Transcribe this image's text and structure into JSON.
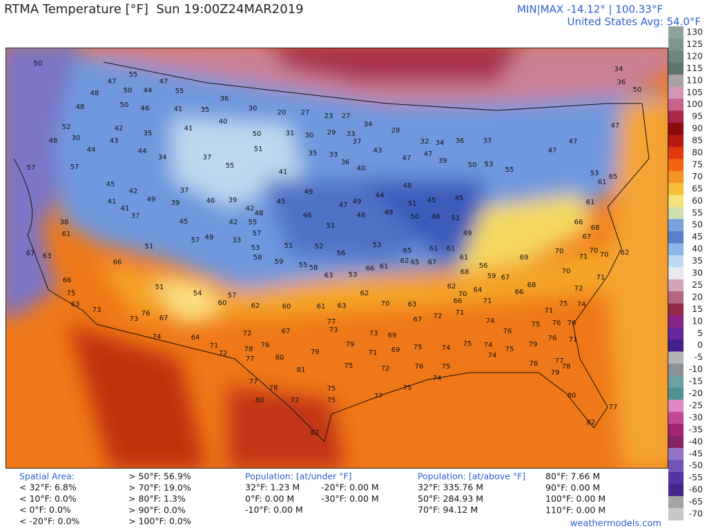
{
  "header": {
    "title": "RTMA Temperature [°F]  Sun 19:00Z24MAR2019",
    "minmax": "MIN|MAX -14.12° | 100.33°F",
    "average": "United States Avg: 54.0°F"
  },
  "map": {
    "station_values": [
      50,
      55,
      47,
      50,
      44,
      47,
      55,
      48,
      50,
      48,
      46,
      41,
      35,
      36,
      30,
      20,
      27,
      23,
      27,
      34,
      52,
      42,
      35,
      41,
      40,
      50,
      31,
      30,
      29,
      33,
      37,
      43,
      28,
      32,
      34,
      36,
      37,
      48,
      30,
      43,
      44,
      34,
      37,
      55,
      51,
      41,
      35,
      33,
      36,
      40,
      47,
      47,
      39,
      50,
      53,
      55,
      47,
      47,
      47,
      50,
      34,
      36,
      53,
      61,
      65,
      61,
      66,
      68,
      67,
      70,
      70,
      70,
      62,
      71,
      70,
      71,
      72,
      75,
      74,
      71,
      75,
      76,
      76,
      76,
      71,
      79,
      77,
      78,
      78,
      79,
      80,
      77,
      82,
      44,
      57,
      57,
      45,
      42,
      49,
      41,
      41,
      37,
      39,
      37,
      46,
      39,
      42,
      48,
      45,
      49,
      47,
      49,
      44,
      48,
      51,
      45,
      45,
      38,
      61,
      45,
      57,
      49,
      33,
      42,
      55,
      57,
      46,
      51,
      48,
      49,
      50,
      48,
      51,
      49,
      53,
      51,
      52,
      56,
      53,
      65,
      61,
      63,
      67,
      66,
      51,
      58,
      59,
      55,
      58,
      63,
      53,
      66,
      61,
      62,
      65,
      67,
      61,
      61,
      56,
      68,
      59,
      69,
      67,
      68,
      66,
      66,
      51,
      54,
      60,
      57,
      62,
      60,
      61,
      63,
      62,
      70,
      63,
      62,
      66,
      71,
      70,
      64,
      75,
      63,
      73,
      73,
      76,
      67,
      74,
      64,
      71,
      72,
      76,
      67,
      77,
      73,
      73,
      69,
      67,
      72,
      71,
      74,
      76,
      75,
      74,
      75,
      74,
      75,
      69,
      71,
      79,
      79,
      80,
      77,
      78,
      72,
      81,
      75,
      72,
      76,
      75,
      74,
      77,
      78,
      72,
      75,
      75,
      77,
      75,
      74,
      80,
      82
    ]
  },
  "colorbar": {
    "ticks": [
      130,
      125,
      120,
      115,
      110,
      105,
      100,
      95,
      90,
      85,
      80,
      75,
      70,
      65,
      60,
      55,
      50,
      45,
      40,
      35,
      30,
      25,
      20,
      15,
      10,
      5,
      0,
      -5,
      -10,
      -15,
      -20,
      -25,
      -30,
      -35,
      -40,
      -45,
      -50,
      -55,
      -60,
      -65,
      -70
    ],
    "colors": [
      "#8fa49c",
      "#7f958d",
      "#6f857e",
      "#5f766f",
      "#a8a0a4",
      "#d497b0",
      "#c8648a",
      "#a82848",
      "#8c0a0a",
      "#b41a10",
      "#e2380e",
      "#f26510",
      "#f59420",
      "#f8c038",
      "#f6e27a",
      "#cfe0b0",
      "#7aa2dc",
      "#5a80cc",
      "#8cb6e8",
      "#bedaf2",
      "#ece8f0",
      "#d4a4b8",
      "#b46882",
      "#942848",
      "#862286",
      "#66269a",
      "#44208a",
      "#b4b4b4",
      "#8a9298",
      "#6ea2a2",
      "#4e9292",
      "#e088c4",
      "#c44898",
      "#a42474",
      "#842462",
      "#9474c4",
      "#7454b4",
      "#5434a4",
      "#442484",
      "#a4a4a4",
      "#c8c8c8"
    ]
  },
  "stats": {
    "spatial_header": "Spatial Area:",
    "spatial_below": [
      "< 32°F: 6.8%",
      "< 10°F: 0.0%",
      "< 0°F: 0.0%",
      "< -20°F: 0.0%"
    ],
    "spatial_above": [
      "> 50°F: 56.9%",
      "> 70°F: 19.0%",
      "> 80°F: 1.3%",
      "> 90°F: 0.0%",
      "> 100°F: 0.0%"
    ],
    "under_header": "Population: [at/under °F]",
    "under_col1": [
      "32°F: 1.23 M",
      "0°F: 0.00 M",
      "-10°F: 0.00 M"
    ],
    "under_col2": [
      "-20°F: 0.00 M",
      "-30°F: 0.00 M"
    ],
    "above_header": "Population: [at/above °F]",
    "above_col1": [
      "32°F: 335.76 M",
      "50°F: 284.93 M",
      "70°F: 94.12 M"
    ],
    "above_col2": [
      "80°F: 7.66 M",
      "90°F: 0.00 M",
      "100°F: 0.00 M",
      "110°F: 0.00 M"
    ]
  },
  "footer": {
    "site": "weathermodels.com"
  }
}
